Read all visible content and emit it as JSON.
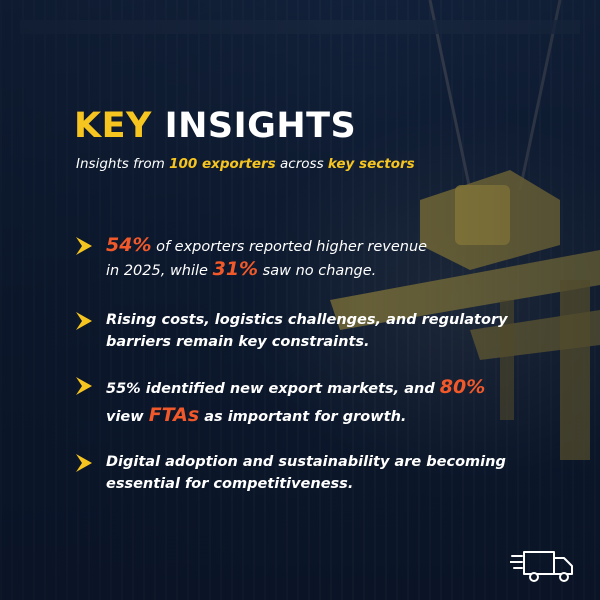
{
  "colors": {
    "accent_yellow": "#f7c520",
    "accent_orange": "#f2592a",
    "background": "#0d1a30",
    "text": "#ffffff"
  },
  "header": {
    "title_key": "KEY",
    "title_rest": "INSIGHTS",
    "subtitle_pre": "Insights from ",
    "subtitle_hl1": "100 exporters",
    "subtitle_mid": " across ",
    "subtitle_hl2": "key sectors"
  },
  "insights": [
    {
      "line1_big": "54%",
      "line1_rest": " of exporters reported higher revenue",
      "line2_pre": "in 2025, while ",
      "line2_big": "31%",
      "line2_rest": " saw no change."
    },
    {
      "line1": "Rising costs, logistics challenges, and regulatory",
      "line2": "barriers remain key constraints."
    },
    {
      "line1_big1": "55%",
      "line1_mid": " identified new export markets, and ",
      "line1_big2": "80%",
      "line2_pre": "view ",
      "line2_big": "FTAs",
      "line2_rest": " as important for growth."
    },
    {
      "line1": "Digital adoption and sustainability are becoming",
      "line2": "essential for competitiveness."
    }
  ],
  "icons": {
    "bullet": "chevron-right-icon",
    "footer": "delivery-truck-icon"
  }
}
